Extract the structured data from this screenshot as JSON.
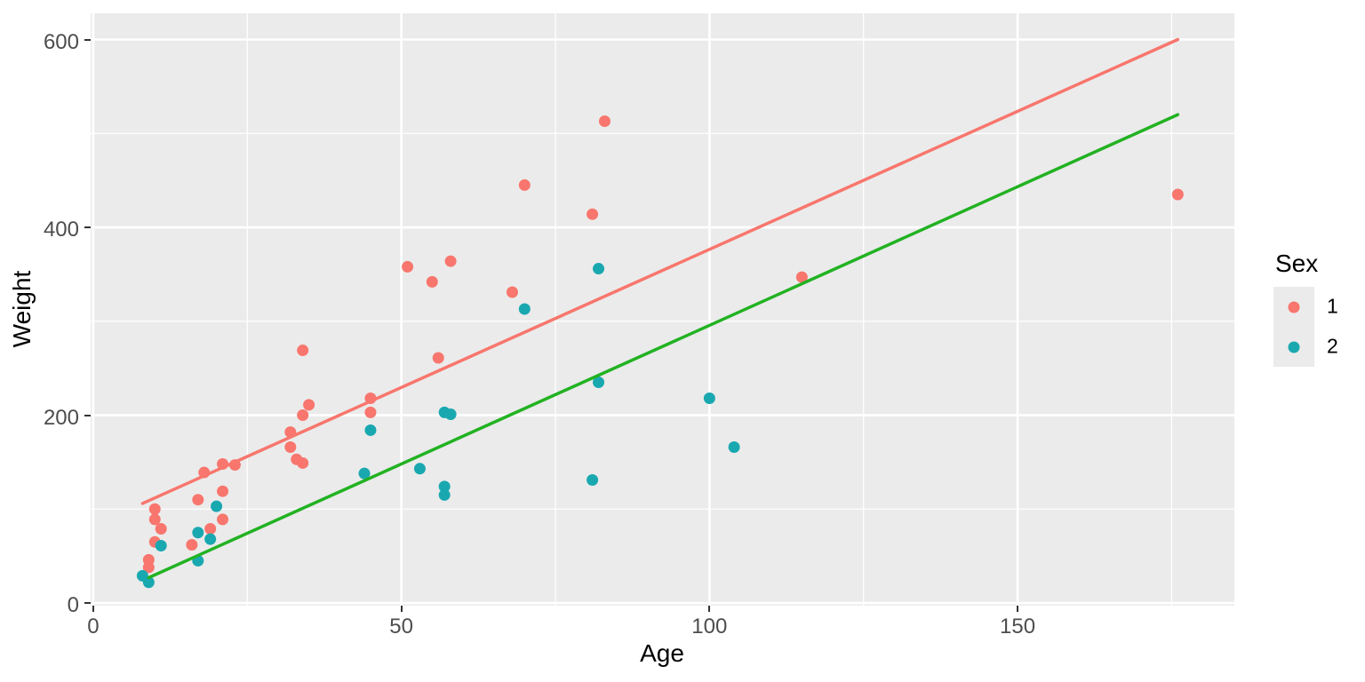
{
  "legend": {
    "title": "Sex",
    "items": [
      {
        "label": "1",
        "color": "#F8766D"
      },
      {
        "label": "2",
        "color": "#1AA8B0"
      }
    ]
  },
  "colors": {
    "background": "#FFFFFF",
    "panel_bg": "#EBEBEB",
    "grid": "#FFFFFF",
    "tick_mark": "#333333",
    "tick_label": "#4D4D4D",
    "axis_title": "#000000"
  },
  "chart_data": {
    "type": "scatter",
    "title": "",
    "xlabel": "Age",
    "ylabel": "Weight",
    "xlim": [
      -0.42,
      185.18
    ],
    "ylim": [
      -2.8,
      627.9
    ],
    "x_ticks": [
      0,
      50,
      100,
      150
    ],
    "x_minor": [
      25,
      75,
      125,
      175
    ],
    "y_ticks": [
      0,
      200,
      400,
      600
    ],
    "y_minor": [
      100,
      300,
      500
    ],
    "grid": "on",
    "legend_position": "right",
    "point_radius": 6.5,
    "series": [
      {
        "name": "1",
        "color": "#F8766D",
        "points": [
          [
            9,
            38
          ],
          [
            9,
            46
          ],
          [
            10,
            65
          ],
          [
            10,
            89
          ],
          [
            10,
            100
          ],
          [
            11,
            79
          ],
          [
            16,
            62
          ],
          [
            17,
            110
          ],
          [
            18,
            139
          ],
          [
            19,
            79
          ],
          [
            21,
            89
          ],
          [
            21,
            119
          ],
          [
            21,
            148
          ],
          [
            23,
            147
          ],
          [
            32,
            166
          ],
          [
            32,
            182
          ],
          [
            33,
            153
          ],
          [
            34,
            149
          ],
          [
            34,
            200
          ],
          [
            34,
            269
          ],
          [
            35,
            211
          ],
          [
            45,
            203
          ],
          [
            45,
            218
          ],
          [
            51,
            358
          ],
          [
            55,
            342
          ],
          [
            56,
            261
          ],
          [
            58,
            364
          ],
          [
            68,
            331
          ],
          [
            70,
            445
          ],
          [
            81,
            414
          ],
          [
            83,
            513
          ],
          [
            115,
            347
          ],
          [
            176,
            435
          ]
        ]
      },
      {
        "name": "2",
        "color": "#1AA8B0",
        "points": [
          [
            8,
            29
          ],
          [
            9,
            22
          ],
          [
            11,
            61
          ],
          [
            17,
            45
          ],
          [
            17,
            75
          ],
          [
            19,
            68
          ],
          [
            20,
            103
          ],
          [
            44,
            138
          ],
          [
            45,
            184
          ],
          [
            53,
            143
          ],
          [
            57,
            115
          ],
          [
            57,
            124
          ],
          [
            57,
            203
          ],
          [
            58,
            201
          ],
          [
            70,
            313
          ],
          [
            81,
            131
          ],
          [
            82,
            235
          ],
          [
            82,
            356
          ],
          [
            100,
            218
          ],
          [
            104,
            166
          ]
        ]
      }
    ],
    "lines": [
      {
        "name": "fit-line-sex1",
        "color": "#F8766D",
        "width": 3.5,
        "x1": 8,
        "y1": 106,
        "x2": 176,
        "y2": 600
      },
      {
        "name": "fit-line-sex2",
        "color": "#22B222",
        "width": 3.5,
        "x1": 9,
        "y1": 27,
        "x2": 176,
        "y2": 520
      }
    ]
  }
}
